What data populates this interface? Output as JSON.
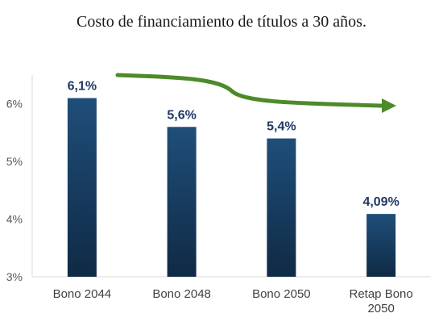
{
  "chart_data": {
    "type": "bar",
    "title": "Costo de financiamiento de títulos a 30 años.",
    "categories": [
      "Bono 2044",
      "Bono 2048",
      "Bono 2050",
      "Retap Bono 2050"
    ],
    "values": [
      6.1,
      5.6,
      5.4,
      4.09
    ],
    "data_labels": [
      "6,1%",
      "5,6%",
      "5,4%",
      "4,09%"
    ],
    "xlabel": "",
    "ylabel": "",
    "ylim": [
      3,
      6.5
    ],
    "yticks": [
      3,
      4,
      5,
      6
    ],
    "ytick_labels": [
      "3%",
      "4%",
      "5%",
      "6%"
    ],
    "grid": false,
    "bar_color": "#1f4e79",
    "bar_color_dark": "#0f2a45",
    "annotation": {
      "type": "trend-arrow",
      "direction": "down-right",
      "color": "#4e8a2a"
    }
  }
}
